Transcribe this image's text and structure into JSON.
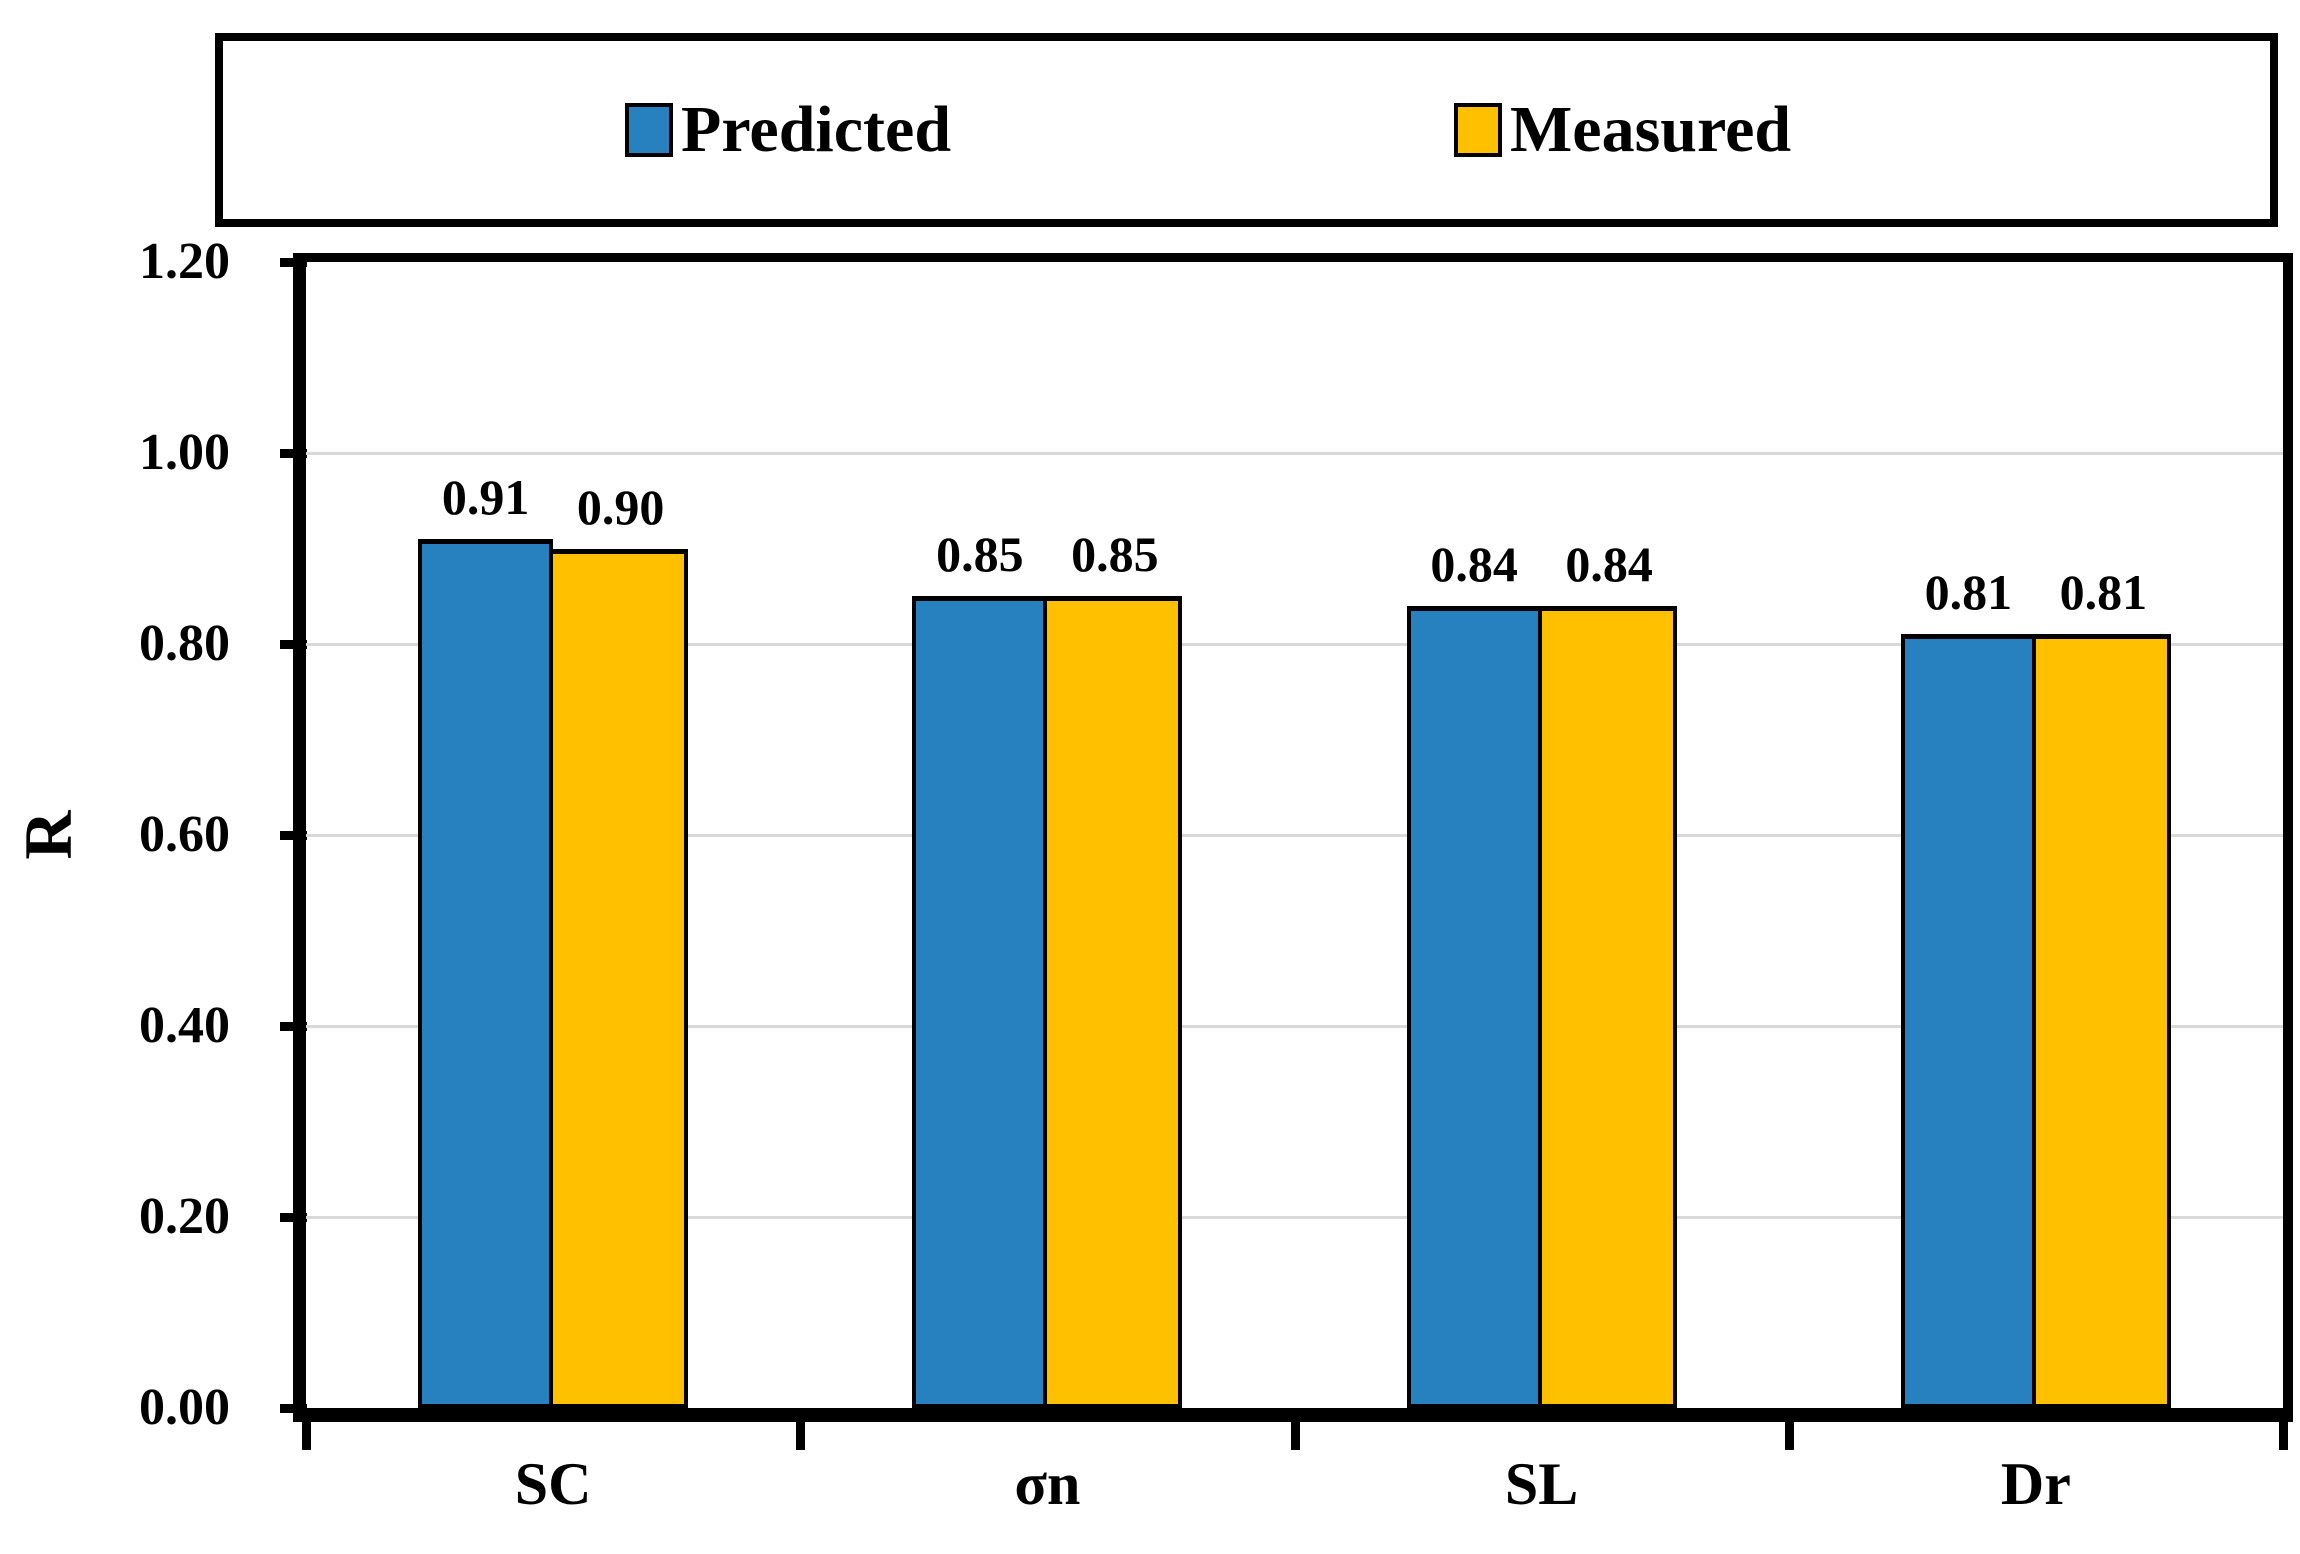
{
  "figure": {
    "background": "#ffffff",
    "text_color": "#000000"
  },
  "legend": {
    "position": "top",
    "border_color": "#000000",
    "entries": [
      {
        "label": "Predicted",
        "color": "#2681BE",
        "swatch": "square"
      },
      {
        "label": "Measured",
        "color": "#FFC000",
        "swatch": "square"
      }
    ]
  },
  "chart_data": {
    "type": "bar",
    "title": "",
    "categories": [
      "SC",
      "σn",
      "SL",
      "Dr"
    ],
    "series": [
      {
        "name": "Predicted",
        "color": "#2681BE",
        "values": [
          0.91,
          0.85,
          0.84,
          0.81
        ],
        "labels": [
          "0.91",
          "0.85",
          "0.84",
          "0.81"
        ]
      },
      {
        "name": "Measured",
        "color": "#FFC000",
        "values": [
          0.9,
          0.85,
          0.84,
          0.81
        ],
        "labels": [
          "0.90",
          "0.85",
          "0.84",
          "0.81"
        ]
      }
    ],
    "xlabel": "",
    "ylabel": "R",
    "ylim": [
      0.0,
      1.2
    ],
    "ytick_step": 0.2,
    "ytick_labels": [
      "0.00",
      "0.20",
      "0.40",
      "0.60",
      "0.80",
      "1.00",
      "1.20"
    ],
    "grid": true,
    "gridline_color": "#D9D9D9",
    "bar_border_color": "#000000",
    "legend_position": "top"
  }
}
